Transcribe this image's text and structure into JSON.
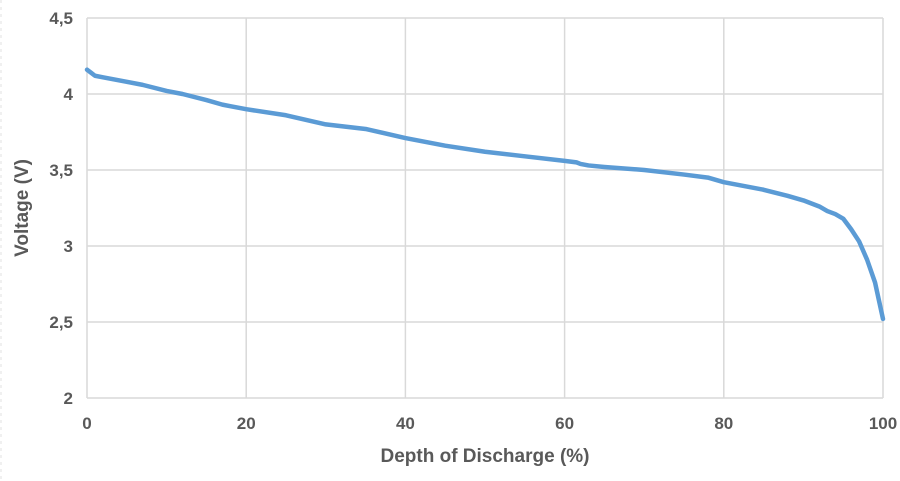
{
  "chart_data": {
    "type": "line",
    "title": "",
    "xlabel": "Depth of Discharge (%)",
    "ylabel": "Voltage (V)",
    "xlim": [
      0,
      100
    ],
    "ylim": [
      2,
      4.5
    ],
    "x_ticks": [
      0,
      20,
      40,
      60,
      80,
      100
    ],
    "x_tick_labels": [
      "0",
      "20",
      "40",
      "60",
      "80",
      "100"
    ],
    "y_ticks": [
      2,
      2.5,
      3,
      3.5,
      4,
      4.5
    ],
    "y_tick_labels": [
      "2",
      "2,5",
      "3",
      "3,5",
      "4",
      "4,5"
    ],
    "grid": true,
    "legend": "none",
    "series": [
      {
        "color": "#5b9bd5",
        "x": [
          0,
          0.5,
          1,
          2,
          3,
          5,
          7,
          10,
          12,
          15,
          17,
          18,
          20,
          25,
          30,
          35,
          40,
          45,
          50,
          55,
          60,
          61.5,
          62,
          63,
          65,
          70,
          75,
          78,
          80,
          85,
          88,
          90,
          92,
          93,
          94,
          95,
          96,
          97,
          98,
          99,
          99.5,
          100
        ],
        "y": [
          4.16,
          4.14,
          4.12,
          4.11,
          4.1,
          4.08,
          4.06,
          4.02,
          4.0,
          3.96,
          3.93,
          3.92,
          3.9,
          3.86,
          3.8,
          3.77,
          3.71,
          3.66,
          3.62,
          3.59,
          3.56,
          3.55,
          3.54,
          3.53,
          3.52,
          3.5,
          3.47,
          3.45,
          3.42,
          3.37,
          3.33,
          3.3,
          3.26,
          3.23,
          3.21,
          3.18,
          3.11,
          3.03,
          2.91,
          2.76,
          2.64,
          2.52
        ]
      }
    ]
  }
}
